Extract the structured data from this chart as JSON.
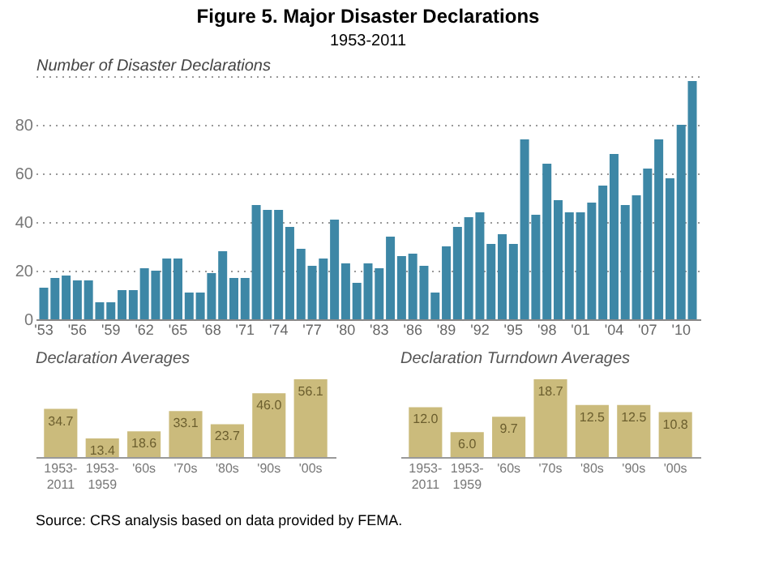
{
  "chart_data": [
    {
      "type": "bar",
      "title": "Figure 5. Major Disaster Declarations",
      "subtitle": "1953-2011",
      "ylabel": "Number of Disaster Declarations",
      "categories": [
        "'53",
        null,
        null,
        "'56",
        null,
        null,
        "'59",
        null,
        null,
        "'62",
        null,
        null,
        "'65",
        null,
        null,
        "'68",
        null,
        null,
        "'71",
        null,
        null,
        "'74",
        null,
        null,
        "'77",
        null,
        null,
        "'80",
        null,
        null,
        "'83",
        null,
        null,
        "'86",
        null,
        null,
        "'89",
        null,
        null,
        "'92",
        null,
        null,
        "'95",
        null,
        null,
        "'98",
        null,
        null,
        "'01",
        null,
        null,
        "'04",
        null,
        null,
        "'07",
        null,
        null,
        "'10",
        null
      ],
      "values": [
        13,
        17,
        18,
        16,
        16,
        7,
        7,
        12,
        12,
        21,
        20,
        25,
        25,
        11,
        11,
        19,
        28,
        17,
        17,
        47,
        45,
        45,
        38,
        29,
        22,
        25,
        41,
        23,
        15,
        23,
        21,
        34,
        26,
        27,
        22,
        11,
        30,
        38,
        42,
        44,
        31,
        35,
        31,
        74,
        43,
        64,
        49,
        44,
        44,
        48,
        55,
        68,
        47,
        51,
        62,
        74,
        58,
        80,
        98
      ],
      "color": "#3d87a6",
      "ylim": [
        0,
        100
      ],
      "yticks": [
        0,
        20,
        40,
        60,
        80,
        {
          "value": 100,
          "label": null
        }
      ],
      "grid": "y",
      "annotations": [
        "Source: CRS analysis based on data provided by FEMA."
      ]
    },
    {
      "type": "bar",
      "title": "Declaration Averages",
      "categories": [
        "1953-2011",
        "1953-1959",
        "'60s",
        "'70s",
        "'80s",
        "'90s",
        "'00s"
      ],
      "values": [
        34.7,
        13.4,
        18.6,
        33.1,
        23.7,
        46.0,
        56.1
      ],
      "value_labels": [
        "34.7",
        "13.4",
        "18.6",
        "33.1",
        "23.7",
        "46.0",
        "56.1"
      ],
      "color": "#cbbb7c"
    },
    {
      "type": "bar",
      "title": "Declaration Turndown Averages",
      "categories": [
        "1953-2011",
        "1953-1959",
        "'60s",
        "'70s",
        "'80s",
        "'90s",
        "'00s"
      ],
      "values": [
        12.0,
        6.0,
        9.7,
        18.7,
        12.5,
        12.5,
        10.8
      ],
      "value_labels": [
        "12.0",
        "6.0",
        "9.7",
        "18.7",
        "12.5",
        "12.5",
        "10.8"
      ],
      "color": "#cbbb7c"
    }
  ]
}
